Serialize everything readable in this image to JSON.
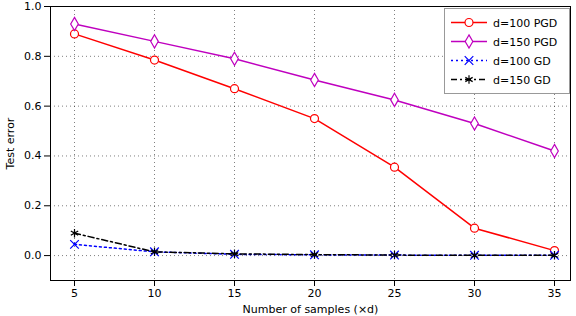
{
  "chart_data": {
    "type": "line",
    "x_label": "Number of samples (×d)",
    "y_label": "Test error",
    "x": [
      5,
      10,
      15,
      20,
      25,
      30,
      35
    ],
    "series": [
      {
        "name": "d=100 PGD",
        "color": "#ff0000",
        "marker": "circle",
        "line_style": "solid",
        "values": [
          0.89,
          0.785,
          0.67,
          0.55,
          0.355,
          0.11,
          0.02
        ],
        "errors": [
          0.01,
          0.01,
          0.01,
          0.01,
          0.01,
          0.015,
          0.01
        ]
      },
      {
        "name": "d=150 PGD",
        "color": "#bf00bf",
        "marker": "diamond",
        "line_style": "solid",
        "values": [
          0.93,
          0.86,
          0.79,
          0.705,
          0.625,
          0.53,
          0.42
        ],
        "errors": [
          0.01,
          0.01,
          0.01,
          0.01,
          0.01,
          0.01,
          0.01
        ]
      },
      {
        "name": "d=100 GD",
        "color": "#0000ff",
        "marker": "times",
        "line_style": "dotted",
        "values": [
          0.045,
          0.015,
          0.005,
          0.003,
          0.002,
          0.001,
          0.001
        ],
        "errors": [
          0.005,
          0.005,
          0.003,
          0.002,
          0.002,
          0.001,
          0.001
        ]
      },
      {
        "name": "d=150 GD",
        "color": "#000000",
        "marker": "asterisk",
        "line_style": "dashdot",
        "values": [
          0.09,
          0.015,
          0.007,
          0.004,
          0.002,
          0.001,
          0.001
        ],
        "errors": [
          0.005,
          0.005,
          0.003,
          0.002,
          0.002,
          0.001,
          0.001
        ]
      }
    ],
    "xlim": [
      3.5,
      36
    ],
    "xticks": [
      5,
      10,
      15,
      20,
      25,
      30,
      35
    ],
    "ylim": [
      -0.1,
      1.0
    ],
    "yticks": [
      {
        "value": 0,
        "label": "0.0"
      },
      {
        "value": 0.2,
        "label": "0.2"
      },
      {
        "value": 0.4,
        "label": "0.4"
      },
      {
        "value": 0.6,
        "label": "0.6"
      },
      {
        "value": 0.8,
        "label": "0.8"
      },
      {
        "value": 1.0,
        "label": "1.0"
      }
    ],
    "grid": true,
    "legend": "upper right"
  }
}
